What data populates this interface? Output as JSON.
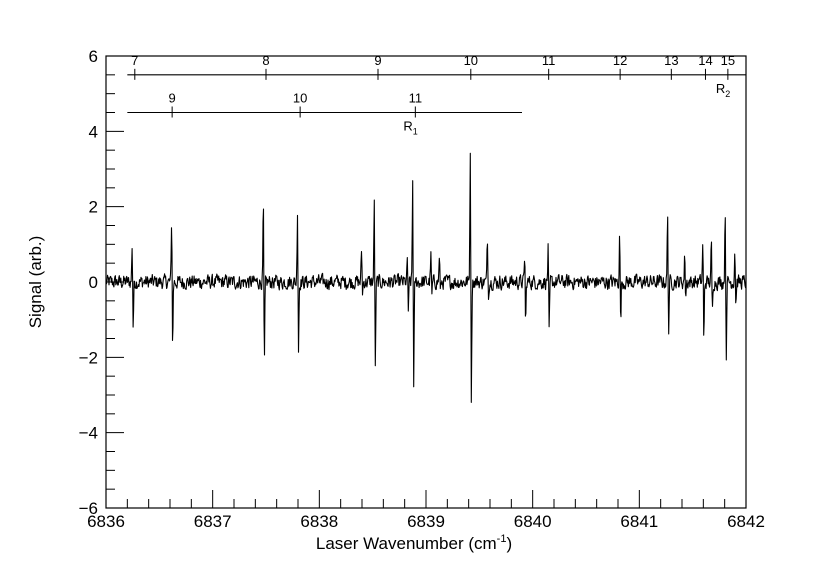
{
  "chart_data": {
    "type": "line",
    "xlabel": "Laser Wavenumber (cm",
    "xlabel_sup": "-1",
    "xlabel_end": ")",
    "ylabel": "Signal (arb.)",
    "xlim": [
      6836,
      6842
    ],
    "ylim": [
      -6,
      6
    ],
    "xticks": [
      6836,
      6837,
      6838,
      6839,
      6840,
      6841,
      6842
    ],
    "xtick_labels": [
      "6836",
      "6837",
      "6838",
      "6839",
      "6840",
      "6841",
      "6842"
    ],
    "yticks": [
      -6,
      -4,
      -2,
      0,
      2,
      4,
      6
    ],
    "ytick_labels": [
      "−6",
      "−4",
      "−2",
      "0",
      "2",
      "4",
      "6"
    ],
    "grid": false,
    "noise_amplitude": 0.17,
    "series": [
      {
        "peaks": [
          {
            "x": 6836.25,
            "pos": 1.2,
            "neg": -1.4
          },
          {
            "x": 6836.62,
            "pos": 2.0,
            "neg": -2.05
          },
          {
            "x": 6837.48,
            "pos": 2.55,
            "neg": -2.7
          },
          {
            "x": 6837.8,
            "pos": 2.3,
            "neg": -2.2
          },
          {
            "x": 6838.4,
            "pos": 0.9,
            "neg": -0.4
          },
          {
            "x": 6838.52,
            "pos": 2.6,
            "neg": -2.8
          },
          {
            "x": 6838.83,
            "pos": 0.7,
            "neg": -0.9
          },
          {
            "x": 6838.88,
            "pos": 3.3,
            "neg": -3.4
          },
          {
            "x": 6839.05,
            "pos": 0.8,
            "neg": -0.5
          },
          {
            "x": 6839.13,
            "pos": 0.8,
            "neg": -0.4
          },
          {
            "x": 6839.42,
            "pos": 4.3,
            "neg": -3.85
          },
          {
            "x": 6839.58,
            "pos": 1.3,
            "neg": -0.5
          },
          {
            "x": 6839.93,
            "pos": 0.9,
            "neg": -1.3
          },
          {
            "x": 6840.15,
            "pos": 1.15,
            "neg": -1.65
          },
          {
            "x": 6840.82,
            "pos": 1.5,
            "neg": -1.35
          },
          {
            "x": 6841.27,
            "pos": 2.1,
            "neg": -1.7
          },
          {
            "x": 6841.43,
            "pos": 0.8,
            "neg": -0.5
          },
          {
            "x": 6841.6,
            "pos": 1.4,
            "neg": -1.9
          },
          {
            "x": 6841.68,
            "pos": 1.2,
            "neg": -1.0
          },
          {
            "x": 6841.81,
            "pos": 2.35,
            "neg": -2.4
          },
          {
            "x": 6841.9,
            "pos": 1.0,
            "neg": -0.8
          }
        ]
      }
    ],
    "assignments": [
      {
        "name": "R",
        "sub": "2",
        "y": 5.5,
        "xrange": [
          6836.2,
          6842
        ],
        "lines": [
          {
            "x": 6836.27,
            "label": "7"
          },
          {
            "x": 6837.5,
            "label": "8"
          },
          {
            "x": 6838.55,
            "label": "9"
          },
          {
            "x": 6839.42,
            "label": "10"
          },
          {
            "x": 6840.15,
            "label": "11"
          },
          {
            "x": 6840.82,
            "label": "12"
          },
          {
            "x": 6841.3,
            "label": "13"
          },
          {
            "x": 6841.62,
            "label": "14"
          },
          {
            "x": 6841.83,
            "label": "15"
          }
        ]
      },
      {
        "name": "R",
        "sub": "1",
        "y": 4.5,
        "xrange": [
          6836.2,
          6839.9
        ],
        "lines": [
          {
            "x": 6836.62,
            "label": "9"
          },
          {
            "x": 6837.82,
            "label": "10"
          },
          {
            "x": 6838.9,
            "label": "11"
          }
        ]
      }
    ]
  }
}
